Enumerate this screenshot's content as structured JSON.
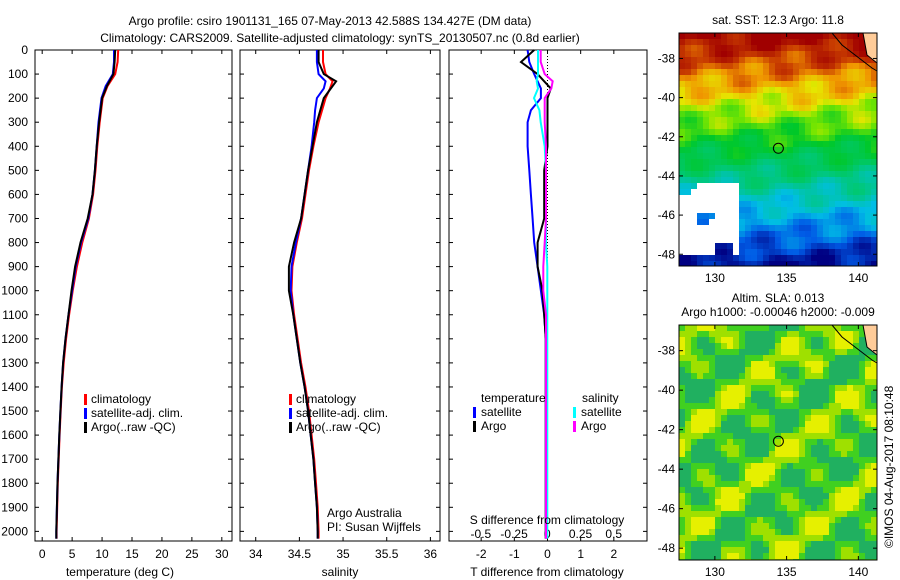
{
  "title_line1": "Argo profile: csiro 1901131_165 07-May-2013 42.588S 134.427E (DM data)",
  "title_line2": "Climatology: CARS2009. Satellite-adjusted climatology: synTS_20130507.nc (0.8d earlier)",
  "colors": {
    "climatology": "#ff0000",
    "satellite": "#0000ff",
    "argo": "#000000",
    "sal_satellite": "#00ffff",
    "sal_argo": "#ff00ff"
  },
  "chart_data": [
    {
      "type": "line",
      "xlabel": "temperature (deg C)",
      "ylabel": "depth",
      "xlim": [
        -1.2,
        31.7
      ],
      "ylim": [
        0,
        2040
      ],
      "xticks": [
        0,
        5,
        10,
        15,
        20,
        25,
        30
      ],
      "yticks": [
        0,
        100,
        200,
        300,
        400,
        500,
        600,
        700,
        800,
        900,
        1000,
        1100,
        1200,
        1300,
        1400,
        1500,
        1600,
        1700,
        1800,
        1900,
        2000
      ],
      "legend": [
        "climatology",
        "satellite-adj. clim.",
        "Argo(..raw -QC)"
      ],
      "depth": [
        0,
        50,
        100,
        150,
        200,
        300,
        400,
        500,
        600,
        700,
        800,
        900,
        1000,
        1100,
        1200,
        1300,
        1400,
        1500,
        1600,
        1700,
        1800,
        1900,
        2000,
        2030
      ],
      "series": [
        {
          "name": "climatology",
          "values": [
            12.7,
            12.6,
            12.2,
            10.9,
            10.1,
            9.6,
            9.2,
            8.9,
            8.5,
            7.8,
            6.7,
            5.8,
            5.1,
            4.5,
            4.0,
            3.6,
            3.3,
            3.1,
            2.9,
            2.75,
            2.6,
            2.5,
            2.4,
            2.4
          ]
        },
        {
          "name": "satellite-adj. clim.",
          "values": [
            12.0,
            12.0,
            11.8,
            10.6,
            9.9,
            9.4,
            9.1,
            8.8,
            8.4,
            7.7,
            6.5,
            5.6,
            5.0,
            4.4,
            3.9,
            3.5,
            3.25,
            3.05,
            2.85,
            2.7,
            2.55,
            2.45,
            2.35,
            2.35
          ]
        },
        {
          "name": "Argo(..raw -QC)",
          "values": [
            12.2,
            12.1,
            11.9,
            10.8,
            10.0,
            9.5,
            9.1,
            8.8,
            8.4,
            7.6,
            6.4,
            5.5,
            4.9,
            4.4,
            3.9,
            3.5,
            3.25,
            3.05,
            2.85,
            2.7,
            2.55,
            2.45,
            2.35,
            2.35
          ]
        }
      ]
    },
    {
      "type": "line",
      "xlabel": "salinity",
      "xlim": [
        33.82,
        36.11
      ],
      "ylim": [
        0,
        2040
      ],
      "xticks": [
        34,
        34.5,
        35,
        35.5,
        36
      ],
      "legend": [
        "climatology",
        "satellite-adj. clim.",
        "Argo(..raw -QC)"
      ],
      "annotation": [
        "Argo Australia",
        "PI: Susan Wijffels"
      ],
      "depth": [
        0,
        50,
        100,
        130,
        160,
        200,
        250,
        300,
        400,
        500,
        600,
        700,
        800,
        900,
        1000,
        1100,
        1200,
        1300,
        1400,
        1500,
        1600,
        1700,
        1800,
        1900,
        2000,
        2030
      ],
      "series": [
        {
          "name": "climatology",
          "values": [
            34.77,
            34.77,
            34.8,
            34.88,
            34.85,
            34.8,
            34.76,
            34.72,
            34.66,
            34.61,
            34.57,
            34.53,
            34.47,
            34.42,
            34.41,
            34.44,
            34.48,
            34.52,
            34.57,
            34.61,
            34.64,
            34.67,
            34.69,
            34.71,
            34.72,
            34.72
          ]
        },
        {
          "name": "satellite-adj. clim.",
          "values": [
            34.7,
            34.7,
            34.72,
            34.8,
            34.78,
            34.7,
            34.68,
            34.67,
            34.64,
            34.6,
            34.56,
            34.52,
            34.46,
            34.41,
            34.4,
            34.43,
            34.47,
            34.51,
            34.56,
            34.6,
            34.63,
            34.66,
            34.68,
            34.7,
            34.71,
            34.71
          ]
        },
        {
          "name": "Argo(..raw -QC)",
          "values": [
            34.72,
            34.72,
            34.78,
            34.92,
            34.86,
            34.78,
            34.74,
            34.7,
            34.65,
            34.6,
            34.56,
            34.52,
            34.44,
            34.38,
            34.38,
            34.43,
            34.47,
            34.51,
            34.56,
            34.6,
            34.63,
            34.66,
            34.68,
            34.7,
            34.71,
            34.71
          ]
        }
      ]
    },
    {
      "type": "line",
      "xlabel": "T difference from climatology",
      "xlabel2": "S difference from climatology",
      "xlim": [
        -2.97,
        3.0
      ],
      "xlim2": [
        -0.74,
        0.75
      ],
      "ylim": [
        0,
        2040
      ],
      "xticks": [
        -2,
        -1,
        0,
        1,
        2
      ],
      "xticks2": [
        -0.5,
        -0.25,
        0,
        0.25,
        0.5
      ],
      "legend_headers": [
        "temperature",
        "salinity"
      ],
      "legend": [
        "satellite",
        "Argo",
        "satellite",
        "Argo"
      ],
      "depth": [
        0,
        50,
        100,
        130,
        160,
        200,
        250,
        300,
        400,
        500,
        600,
        700,
        800,
        900,
        1000,
        1100,
        1200,
        1400,
        1600,
        1800,
        2000,
        2030
      ],
      "series": [
        {
          "name": "T satellite",
          "axis": "T",
          "values": [
            -0.6,
            -0.55,
            -0.4,
            -0.3,
            -0.2,
            -0.2,
            -0.5,
            -0.6,
            -0.6,
            -0.55,
            -0.5,
            -0.45,
            -0.4,
            -0.3,
            -0.2,
            -0.1,
            -0.05,
            -0.05,
            -0.05,
            -0.05,
            -0.05,
            -0.05
          ]
        },
        {
          "name": "T Argo",
          "axis": "T",
          "values": [
            -0.4,
            -0.8,
            -0.3,
            -0.1,
            0.1,
            0.0,
            0.0,
            0.0,
            0.0,
            -0.1,
            -0.1,
            -0.1,
            -0.3,
            -0.3,
            -0.15,
            -0.1,
            -0.05,
            -0.05,
            -0.05,
            -0.05,
            -0.05,
            -0.05
          ]
        },
        {
          "name": "S satellite",
          "axis": "S",
          "values": [
            -0.07,
            -0.07,
            -0.07,
            -0.08,
            -0.07,
            -0.1,
            -0.06,
            -0.05,
            -0.02,
            -0.01,
            -0.01,
            -0.01,
            -0.01,
            0.0,
            0.0,
            0.0,
            0.0,
            0.0,
            0.0,
            0.0,
            0.0,
            0.0
          ]
        },
        {
          "name": "S Argo",
          "axis": "S",
          "values": [
            -0.05,
            -0.05,
            -0.02,
            0.04,
            0.03,
            -0.02,
            -0.02,
            -0.02,
            -0.01,
            -0.01,
            -0.01,
            -0.01,
            -0.02,
            -0.03,
            -0.03,
            -0.01,
            -0.01,
            -0.01,
            -0.01,
            -0.01,
            -0.01,
            -0.01
          ]
        }
      ]
    },
    {
      "type": "heatmap",
      "title": "sat. SST: 12.3 Argo: 11.8",
      "xticks": [
        130,
        135,
        140
      ],
      "yticks": [
        -38,
        -40,
        -42,
        -44,
        -46,
        -48
      ],
      "xlim": [
        127.5,
        141.3
      ],
      "ylim": [
        -48.6,
        -36.7
      ],
      "argo_position": [
        134.427,
        -42.588
      ]
    },
    {
      "type": "heatmap",
      "title1": "Altim. SLA: 0.013",
      "title2": "Argo h1000: -0.00046 h2000: -0.009",
      "xticks": [
        130,
        135,
        140
      ],
      "yticks": [
        -38,
        -40,
        -42,
        -44,
        -46,
        -48
      ],
      "xlim": [
        127.5,
        141.3
      ],
      "ylim": [
        -48.6,
        -36.7
      ],
      "argo_position": [
        134.427,
        -42.588
      ]
    }
  ],
  "credit": "©IMOS 04-Aug-2017 08:10:48"
}
